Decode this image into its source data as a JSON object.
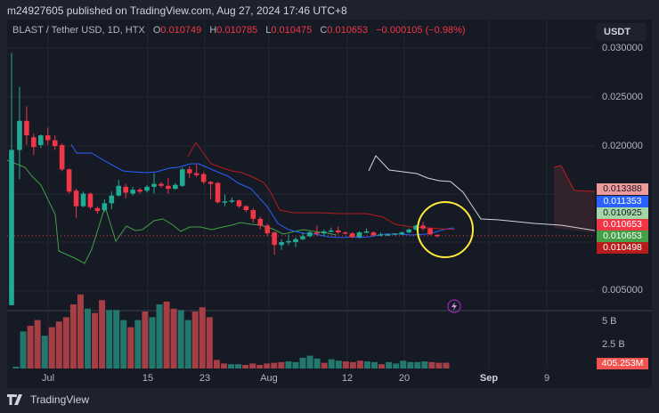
{
  "header": {
    "published": "m24927605 published on TradingView.com, Aug 27, 2024 17:46 UTC+8"
  },
  "legend": {
    "symbol": "BLAST / Tether USD, 1D, HTX",
    "o_label": "O",
    "o": "0.010749",
    "h_label": "H",
    "h": "0.010785",
    "l_label": "L",
    "l": "0.010475",
    "c_label": "C",
    "c": "0.010653",
    "change": "−0.000105 (−0.98%)"
  },
  "axis": {
    "unit": "USDT",
    "price_ticks": [
      "0.030000",
      "0.025000",
      "0.020000",
      "0.005000"
    ],
    "volume_ticks": [
      "5 B",
      "2.5 B"
    ],
    "time_ticks": [
      "Jul",
      "15",
      "23",
      "Aug",
      "12",
      "20",
      "Sep",
      "9"
    ]
  },
  "price_tags": [
    {
      "value": "0.013388",
      "bg": "#ef9a9a",
      "fg": "#131722"
    },
    {
      "value": "0.011353",
      "bg": "#2962ff",
      "fg": "#ffffff"
    },
    {
      "value": "0.010925",
      "bg": "#a5d6a7",
      "fg": "#131722"
    },
    {
      "value": "0.010653",
      "bg": "#f23645",
      "fg": "#ffffff"
    },
    {
      "value": "0.010653",
      "bg": "#43a047",
      "fg": "#ffffff"
    },
    {
      "value": "0.010498",
      "bg": "#b71c1c",
      "fg": "#ffffff"
    }
  ],
  "volume_tag": {
    "value": "405.253M",
    "bg": "#f05350",
    "fg": "#ffffff"
  },
  "brand": {
    "name": "TradingView"
  },
  "colors": {
    "up": "#22ab94",
    "down": "#f23645",
    "vol_up": "#22786c",
    "vol_down": "#a63e45",
    "tenkan": "#2962ff",
    "kijun": "#b71c1c",
    "chikou": "#43a047",
    "span": "#d1d4dc",
    "highlight": "#ffeb3b"
  },
  "chart_data": {
    "type": "candlestick",
    "title": "BLAST / Tether USD, 1D, HTX",
    "ylabel": "USDT",
    "ylim": [
      0.0035,
      0.0318
    ],
    "x_tick_labels": [
      "Jul",
      "15",
      "23",
      "Aug",
      "12",
      "20",
      "Sep",
      "9"
    ],
    "candles": [
      {
        "d": "Jun 26",
        "o": 0.0035,
        "h": 0.0295,
        "l": 0.0035,
        "c": 0.0195
      },
      {
        "d": "Jun 27",
        "o": 0.0195,
        "h": 0.026,
        "l": 0.0165,
        "c": 0.0225
      },
      {
        "d": "Jun 28",
        "o": 0.0225,
        "h": 0.024,
        "l": 0.02,
        "c": 0.021
      },
      {
        "d": "Jun 29",
        "o": 0.0208,
        "h": 0.0212,
        "l": 0.019,
        "c": 0.0198
      },
      {
        "d": "Jun 30",
        "o": 0.02,
        "h": 0.0211,
        "l": 0.0197,
        "c": 0.021
      },
      {
        "d": "Jul 1",
        "o": 0.021,
        "h": 0.0218,
        "l": 0.02,
        "c": 0.0205
      },
      {
        "d": "Jul 2",
        "o": 0.0205,
        "h": 0.021,
        "l": 0.0195,
        "c": 0.0199
      },
      {
        "d": "Jul 3",
        "o": 0.02,
        "h": 0.0202,
        "l": 0.0173,
        "c": 0.0175
      },
      {
        "d": "Jul 4",
        "o": 0.0175,
        "h": 0.0176,
        "l": 0.015,
        "c": 0.0152
      },
      {
        "d": "Jul 5",
        "o": 0.0153,
        "h": 0.0155,
        "l": 0.0125,
        "c": 0.0137
      },
      {
        "d": "Jul 6",
        "o": 0.0137,
        "h": 0.0152,
        "l": 0.0136,
        "c": 0.015
      },
      {
        "d": "Jul 7",
        "o": 0.015,
        "h": 0.0151,
        "l": 0.0134,
        "c": 0.0136
      },
      {
        "d": "Jul 8",
        "o": 0.0135,
        "h": 0.0137,
        "l": 0.0129,
        "c": 0.0132
      },
      {
        "d": "Jul 9",
        "o": 0.0133,
        "h": 0.0144,
        "l": 0.0131,
        "c": 0.014
      },
      {
        "d": "Jul 10",
        "o": 0.014,
        "h": 0.0152,
        "l": 0.0134,
        "c": 0.0148
      },
      {
        "d": "Jul 11",
        "o": 0.0148,
        "h": 0.0164,
        "l": 0.0147,
        "c": 0.0158
      },
      {
        "d": "Jul 12",
        "o": 0.0157,
        "h": 0.016,
        "l": 0.0145,
        "c": 0.0151
      },
      {
        "d": "Jul 13",
        "o": 0.015,
        "h": 0.0157,
        "l": 0.0148,
        "c": 0.0154
      },
      {
        "d": "Jul 14",
        "o": 0.0154,
        "h": 0.0156,
        "l": 0.015,
        "c": 0.0152
      },
      {
        "d": "Jul 15",
        "o": 0.0153,
        "h": 0.0159,
        "l": 0.0151,
        "c": 0.0157
      },
      {
        "d": "Jul 16",
        "o": 0.0157,
        "h": 0.0171,
        "l": 0.015,
        "c": 0.016
      },
      {
        "d": "Jul 17",
        "o": 0.016,
        "h": 0.0162,
        "l": 0.0156,
        "c": 0.0158
      },
      {
        "d": "Jul 18",
        "o": 0.0158,
        "h": 0.0166,
        "l": 0.015,
        "c": 0.0155
      },
      {
        "d": "Jul 19",
        "o": 0.0155,
        "h": 0.0161,
        "l": 0.0154,
        "c": 0.0159
      },
      {
        "d": "Jul 20",
        "o": 0.0158,
        "h": 0.0177,
        "l": 0.0157,
        "c": 0.0175
      },
      {
        "d": "Jul 21",
        "o": 0.0175,
        "h": 0.0178,
        "l": 0.0166,
        "c": 0.0171
      },
      {
        "d": "Jul 22",
        "o": 0.0171,
        "h": 0.018,
        "l": 0.0167,
        "c": 0.0169
      },
      {
        "d": "Jul 23",
        "o": 0.017,
        "h": 0.0172,
        "l": 0.016,
        "c": 0.0162
      },
      {
        "d": "Jul 24",
        "o": 0.0162,
        "h": 0.0163,
        "l": 0.0144,
        "c": 0.016
      },
      {
        "d": "Jul 25",
        "o": 0.0161,
        "h": 0.0162,
        "l": 0.014,
        "c": 0.0141
      },
      {
        "d": "Jul 26",
        "o": 0.0141,
        "h": 0.0149,
        "l": 0.0137,
        "c": 0.0142
      },
      {
        "d": "Jul 27",
        "o": 0.0142,
        "h": 0.0146,
        "l": 0.014,
        "c": 0.0143
      },
      {
        "d": "Jul 28",
        "o": 0.0143,
        "h": 0.0144,
        "l": 0.0135,
        "c": 0.0137
      },
      {
        "d": "Jul 29",
        "o": 0.0137,
        "h": 0.0138,
        "l": 0.0131,
        "c": 0.0133
      },
      {
        "d": "Jul 30",
        "o": 0.0133,
        "h": 0.0135,
        "l": 0.012,
        "c": 0.0124
      },
      {
        "d": "Jul 31",
        "o": 0.0124,
        "h": 0.0126,
        "l": 0.0113,
        "c": 0.0117
      },
      {
        "d": "Aug 1",
        "o": 0.0117,
        "h": 0.0119,
        "l": 0.0106,
        "c": 0.0109
      },
      {
        "d": "Aug 2",
        "o": 0.011,
        "h": 0.0111,
        "l": 0.0087,
        "c": 0.0097
      },
      {
        "d": "Aug 3",
        "o": 0.0097,
        "h": 0.0103,
        "l": 0.0092,
        "c": 0.01
      },
      {
        "d": "Aug 4",
        "o": 0.01,
        "h": 0.0108,
        "l": 0.0097,
        "c": 0.0101
      },
      {
        "d": "Aug 5",
        "o": 0.01,
        "h": 0.0105,
        "l": 0.0095,
        "c": 0.0103
      },
      {
        "d": "Aug 6",
        "o": 0.0103,
        "h": 0.011,
        "l": 0.0102,
        "c": 0.0106
      },
      {
        "d": "Aug 7",
        "o": 0.0106,
        "h": 0.0111,
        "l": 0.0105,
        "c": 0.011
      },
      {
        "d": "Aug 8",
        "o": 0.011,
        "h": 0.0117,
        "l": 0.0107,
        "c": 0.0109
      },
      {
        "d": "Aug 9",
        "o": 0.0109,
        "h": 0.0113,
        "l": 0.0106,
        "c": 0.0111
      },
      {
        "d": "Aug 10",
        "o": 0.0111,
        "h": 0.0115,
        "l": 0.011,
        "c": 0.0112
      },
      {
        "d": "Aug 11",
        "o": 0.0112,
        "h": 0.0116,
        "l": 0.0108,
        "c": 0.011
      },
      {
        "d": "Aug 12",
        "o": 0.011,
        "h": 0.0111,
        "l": 0.0108,
        "c": 0.0109
      },
      {
        "d": "Aug 13",
        "o": 0.0109,
        "h": 0.011,
        "l": 0.0104,
        "c": 0.0105
      },
      {
        "d": "Aug 14",
        "o": 0.0105,
        "h": 0.0111,
        "l": 0.0104,
        "c": 0.011
      },
      {
        "d": "Aug 15",
        "o": 0.011,
        "h": 0.0114,
        "l": 0.0109,
        "c": 0.0111
      },
      {
        "d": "Aug 16",
        "o": 0.011,
        "h": 0.0111,
        "l": 0.0106,
        "c": 0.0107
      },
      {
        "d": "Aug 17",
        "o": 0.0108,
        "h": 0.011,
        "l": 0.0106,
        "c": 0.0108
      },
      {
        "d": "Aug 18",
        "o": 0.0108,
        "h": 0.0109,
        "l": 0.0107,
        "c": 0.0108
      },
      {
        "d": "Aug 19",
        "o": 0.0108,
        "h": 0.0109,
        "l": 0.0107,
        "c": 0.0109
      },
      {
        "d": "Aug 20",
        "o": 0.0108,
        "h": 0.0111,
        "l": 0.0107,
        "c": 0.011
      },
      {
        "d": "Aug 21",
        "o": 0.011,
        "h": 0.0114,
        "l": 0.0109,
        "c": 0.0113
      },
      {
        "d": "Aug 22",
        "o": 0.0113,
        "h": 0.0118,
        "l": 0.0112,
        "c": 0.0117
      },
      {
        "d": "Aug 23",
        "o": 0.0117,
        "h": 0.0121,
        "l": 0.0112,
        "c": 0.0114
      },
      {
        "d": "Aug 24",
        "o": 0.0114,
        "h": 0.0115,
        "l": 0.0107,
        "c": 0.0108
      },
      {
        "d": "Aug 25",
        "o": 0.01075,
        "h": 0.01078,
        "l": 0.01047,
        "c": 0.01065
      }
    ],
    "volume_billions": [
      0.05,
      2.6,
      3.0,
      3.4,
      2.3,
      2.9,
      3.3,
      3.6,
      4.5,
      5.2,
      4.2,
      3.9,
      4.8,
      4.1,
      4.1,
      3.4,
      2.9,
      3.4,
      4.0,
      3.6,
      4.5,
      4.7,
      4.2,
      4.1,
      3.4,
      4.0,
      4.3,
      3.6,
      0.6,
      0.35,
      0.3,
      0.3,
      0.25,
      0.35,
      0.25,
      0.35,
      0.4,
      0.45,
      0.5,
      0.45,
      0.75,
      0.9,
      0.7,
      0.4,
      0.65,
      0.55,
      0.5,
      0.45,
      0.55,
      0.5,
      0.45,
      0.3,
      0.45,
      0.35,
      0.55,
      0.45,
      0.45,
      0.5,
      0.45,
      0.4,
      0.405
    ],
    "volume_colors": "alternating up/down per candle",
    "indicators": {
      "tenkan_last": 0.011353,
      "kijun_last": 0.010498,
      "span_a_last": 0.013388,
      "span_b_last": 0.010925,
      "close_last": 0.010653
    }
  }
}
